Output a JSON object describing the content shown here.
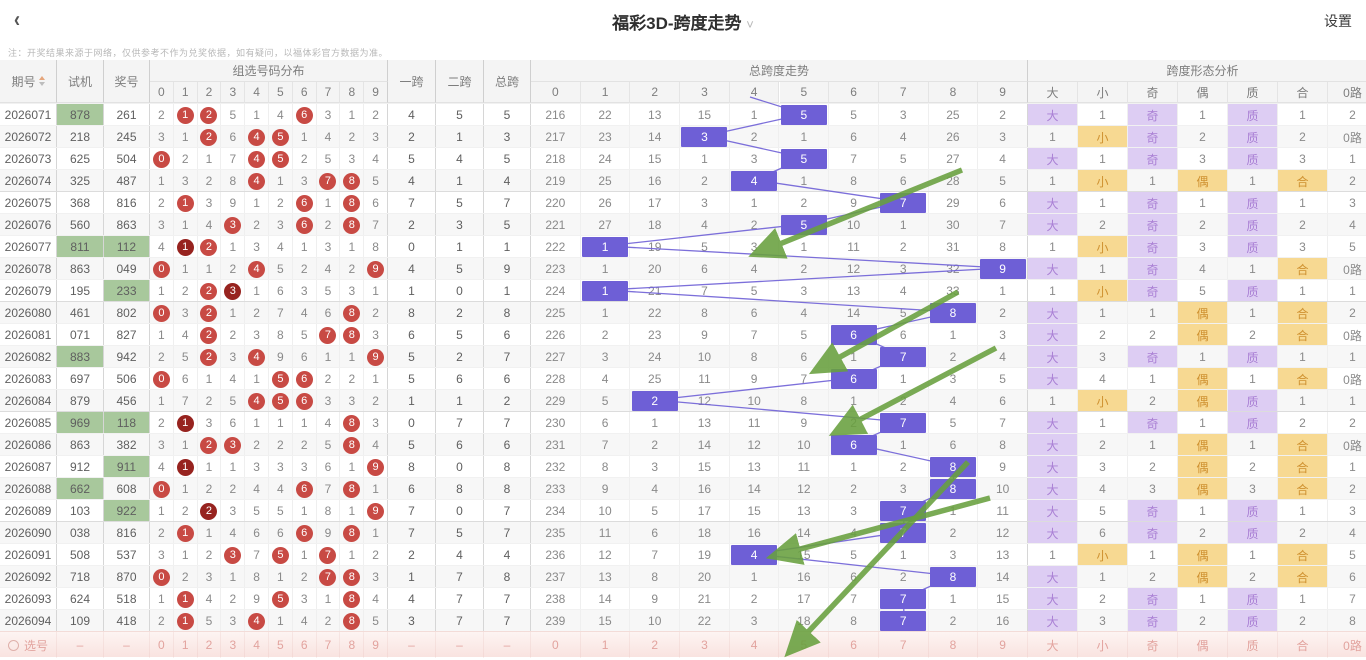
{
  "topbar": {
    "back_icon": "‹",
    "title": "福彩3D-跨度走势",
    "dropdown_icon": "⌄",
    "settings_label": "设置"
  },
  "note": "注：开奖结果来源于网络，仅供参考不作为兑奖依据，如有疑问，以福体彩官方数据为准。",
  "headers": {
    "issue": "期号",
    "test": "试机",
    "prize": "奖号",
    "dist_title": "组选号码分布",
    "digits": [
      "0",
      "1",
      "2",
      "3",
      "4",
      "5",
      "6",
      "7",
      "8",
      "9"
    ],
    "span1": "一跨",
    "span2": "二跨",
    "span_total": "总跨",
    "trend_title": "总跨度走势",
    "trend_digits": [
      "0",
      "1",
      "2",
      "3",
      "4",
      "5",
      "6",
      "7",
      "8",
      "9"
    ],
    "analysis_title": "跨度形态分析",
    "analysis_cols": [
      "大",
      "小",
      "奇",
      "偶",
      "质",
      "合",
      "0路"
    ]
  },
  "rows": [
    {
      "issue": "2026071",
      "test": "878",
      "test_hl": true,
      "prize": "261",
      "prize_hl": false,
      "omit": [
        2,
        1,
        2,
        5,
        1,
        4,
        6,
        3,
        1,
        2
      ],
      "circ": [
        0,
        1,
        1,
        0,
        0,
        0,
        1,
        0,
        0,
        0
      ],
      "k1": "4",
      "k2": "5",
      "kt": "5",
      "trend": [
        216,
        22,
        13,
        15,
        1,
        5,
        5,
        3,
        25,
        2
      ],
      "span": 5,
      "shape": [
        "大",
        "1",
        "奇",
        "1",
        "质",
        "1",
        "2"
      ]
    },
    {
      "issue": "2026072",
      "test": "218",
      "test_hl": false,
      "prize": "245",
      "prize_hl": false,
      "omit": [
        3,
        1,
        2,
        6,
        4,
        5,
        1,
        4,
        2,
        3
      ],
      "circ": [
        0,
        0,
        1,
        0,
        1,
        1,
        0,
        0,
        0,
        0
      ],
      "k1": "2",
      "k2": "1",
      "kt": "3",
      "trend": [
        217,
        23,
        14,
        3,
        2,
        1,
        6,
        4,
        26,
        3
      ],
      "span": 3,
      "shape": [
        "1",
        "小",
        "奇",
        "2",
        "质",
        "2",
        "0路"
      ]
    },
    {
      "issue": "2026073",
      "test": "625",
      "test_hl": false,
      "prize": "504",
      "prize_hl": false,
      "omit": [
        0,
        2,
        1,
        7,
        4,
        5,
        2,
        5,
        3,
        4
      ],
      "circ": [
        1,
        0,
        0,
        0,
        1,
        1,
        0,
        0,
        0,
        0
      ],
      "k1": "5",
      "k2": "4",
      "kt": "5",
      "trend": [
        218,
        24,
        15,
        1,
        3,
        5,
        7,
        5,
        27,
        4
      ],
      "span": 5,
      "shape": [
        "大",
        "1",
        "奇",
        "3",
        "质",
        "3",
        "1"
      ]
    },
    {
      "issue": "2026074",
      "test": "325",
      "test_hl": false,
      "prize": "487",
      "prize_hl": false,
      "omit": [
        1,
        3,
        2,
        8,
        4,
        1,
        3,
        7,
        8,
        5
      ],
      "circ": [
        0,
        0,
        0,
        0,
        1,
        0,
        0,
        1,
        1,
        0
      ],
      "k1": "4",
      "k2": "1",
      "kt": "4",
      "trend": [
        219,
        25,
        16,
        2,
        4,
        1,
        8,
        6,
        28,
        5
      ],
      "span": 4,
      "shape": [
        "1",
        "小",
        "1",
        "偶",
        "1",
        "合",
        "2"
      ]
    },
    {
      "issue": "2026075",
      "test": "368",
      "test_hl": false,
      "prize": "816",
      "prize_hl": false,
      "omit": [
        2,
        1,
        3,
        9,
        1,
        2,
        6,
        1,
        8,
        6
      ],
      "circ": [
        0,
        1,
        0,
        0,
        0,
        0,
        1,
        0,
        1,
        0
      ],
      "k1": "7",
      "k2": "5",
      "kt": "7",
      "trend": [
        220,
        26,
        17,
        3,
        1,
        2,
        9,
        7,
        29,
        6
      ],
      "span": 7,
      "shape": [
        "大",
        "1",
        "奇",
        "1",
        "质",
        "1",
        "3"
      ]
    },
    {
      "issue": "2026076",
      "test": "560",
      "test_hl": false,
      "prize": "863",
      "prize_hl": false,
      "omit": [
        3,
        1,
        4,
        3,
        2,
        3,
        6,
        2,
        8,
        7
      ],
      "circ": [
        0,
        0,
        0,
        1,
        0,
        0,
        1,
        0,
        1,
        0
      ],
      "k1": "2",
      "k2": "3",
      "kt": "5",
      "trend": [
        221,
        27,
        18,
        4,
        2,
        5,
        10,
        1,
        30,
        7
      ],
      "span": 5,
      "shape": [
        "大",
        "2",
        "奇",
        "2",
        "质",
        "2",
        "4"
      ]
    },
    {
      "issue": "2026077",
      "test": "811",
      "test_hl": true,
      "prize": "112",
      "prize_hl": true,
      "omit": [
        4,
        1,
        2,
        1,
        3,
        4,
        1,
        3,
        1,
        8
      ],
      "circ": [
        0,
        2,
        1,
        0,
        0,
        0,
        0,
        0,
        0,
        0
      ],
      "k1": "0",
      "k2": "1",
      "kt": "1",
      "trend": [
        222,
        1,
        19,
        5,
        3,
        1,
        11,
        2,
        31,
        8
      ],
      "span": 1,
      "shape": [
        "1",
        "小",
        "奇",
        "3",
        "质",
        "3",
        "5"
      ]
    },
    {
      "issue": "2026078",
      "test": "863",
      "test_hl": false,
      "prize": "049",
      "prize_hl": false,
      "omit": [
        0,
        1,
        1,
        2,
        4,
        5,
        2,
        4,
        2,
        9
      ],
      "circ": [
        1,
        0,
        0,
        0,
        1,
        0,
        0,
        0,
        0,
        1
      ],
      "k1": "4",
      "k2": "5",
      "kt": "9",
      "trend": [
        223,
        1,
        20,
        6,
        4,
        2,
        12,
        3,
        32,
        9
      ],
      "span": 9,
      "shape": [
        "大",
        "1",
        "奇",
        "4",
        "1",
        "合",
        "0路"
      ]
    },
    {
      "issue": "2026079",
      "test": "195",
      "test_hl": false,
      "prize": "233",
      "prize_hl": true,
      "omit": [
        1,
        2,
        2,
        3,
        1,
        6,
        3,
        5,
        3,
        1
      ],
      "circ": [
        0,
        0,
        1,
        2,
        0,
        0,
        0,
        0,
        0,
        0
      ],
      "k1": "1",
      "k2": "0",
      "kt": "1",
      "trend": [
        224,
        1,
        21,
        7,
        5,
        3,
        13,
        4,
        33,
        1
      ],
      "span": 1,
      "shape": [
        "1",
        "小",
        "奇",
        "5",
        "质",
        "1",
        "1"
      ]
    },
    {
      "issue": "2026080",
      "test": "461",
      "test_hl": false,
      "prize": "802",
      "prize_hl": false,
      "omit": [
        0,
        3,
        2,
        1,
        2,
        7,
        4,
        6,
        8,
        2
      ],
      "circ": [
        1,
        0,
        1,
        0,
        0,
        0,
        0,
        0,
        1,
        0
      ],
      "k1": "8",
      "k2": "2",
      "kt": "8",
      "trend": [
        225,
        1,
        22,
        8,
        6,
        4,
        14,
        5,
        8,
        2
      ],
      "span": 8,
      "shape": [
        "大",
        "1",
        "1",
        "偶",
        "1",
        "合",
        "2"
      ]
    },
    {
      "issue": "2026081",
      "test": "071",
      "test_hl": false,
      "prize": "827",
      "prize_hl": false,
      "omit": [
        1,
        4,
        2,
        2,
        3,
        8,
        5,
        7,
        8,
        3
      ],
      "circ": [
        0,
        0,
        1,
        0,
        0,
        0,
        0,
        1,
        1,
        0
      ],
      "k1": "6",
      "k2": "5",
      "kt": "6",
      "trend": [
        226,
        2,
        23,
        9,
        7,
        5,
        6,
        6,
        1,
        3
      ],
      "span": 6,
      "shape": [
        "大",
        "2",
        "2",
        "偶",
        "2",
        "合",
        "0路"
      ]
    },
    {
      "issue": "2026082",
      "test": "883",
      "test_hl": true,
      "prize": "942",
      "prize_hl": false,
      "omit": [
        2,
        5,
        2,
        3,
        4,
        9,
        6,
        1,
        1,
        9
      ],
      "circ": [
        0,
        0,
        1,
        0,
        1,
        0,
        0,
        0,
        0,
        1
      ],
      "k1": "5",
      "k2": "2",
      "kt": "7",
      "trend": [
        227,
        3,
        24,
        10,
        8,
        6,
        1,
        7,
        2,
        4
      ],
      "span": 7,
      "shape": [
        "大",
        "3",
        "奇",
        "1",
        "质",
        "1",
        "1"
      ]
    },
    {
      "issue": "2026083",
      "test": "697",
      "test_hl": false,
      "prize": "506",
      "prize_hl": false,
      "omit": [
        0,
        6,
        1,
        4,
        1,
        5,
        6,
        2,
        2,
        1
      ],
      "circ": [
        1,
        0,
        0,
        0,
        0,
        1,
        1,
        0,
        0,
        0
      ],
      "k1": "5",
      "k2": "6",
      "kt": "6",
      "trend": [
        228,
        4,
        25,
        11,
        9,
        7,
        6,
        1,
        3,
        5
      ],
      "span": 6,
      "shape": [
        "大",
        "4",
        "1",
        "偶",
        "1",
        "合",
        "0路"
      ]
    },
    {
      "issue": "2026084",
      "test": "879",
      "test_hl": false,
      "prize": "456",
      "prize_hl": false,
      "omit": [
        1,
        7,
        2,
        5,
        4,
        5,
        6,
        3,
        3,
        2
      ],
      "circ": [
        0,
        0,
        0,
        0,
        1,
        1,
        1,
        0,
        0,
        0
      ],
      "k1": "1",
      "k2": "1",
      "kt": "2",
      "trend": [
        229,
        5,
        2,
        12,
        10,
        8,
        1,
        2,
        4,
        6
      ],
      "span": 2,
      "shape": [
        "1",
        "小",
        "2",
        "偶",
        "质",
        "1",
        "1"
      ]
    },
    {
      "issue": "2026085",
      "test": "969",
      "test_hl": true,
      "prize": "118",
      "prize_hl": true,
      "omit": [
        2,
        1,
        3,
        6,
        1,
        1,
        1,
        4,
        8,
        3
      ],
      "circ": [
        0,
        2,
        0,
        0,
        0,
        0,
        0,
        0,
        1,
        0
      ],
      "k1": "0",
      "k2": "7",
      "kt": "7",
      "trend": [
        230,
        6,
        1,
        13,
        11,
        9,
        2,
        7,
        5,
        7
      ],
      "span": 7,
      "shape": [
        "大",
        "1",
        "奇",
        "1",
        "质",
        "2",
        "2"
      ]
    },
    {
      "issue": "2026086",
      "test": "863",
      "test_hl": false,
      "prize": "382",
      "prize_hl": false,
      "omit": [
        3,
        1,
        2,
        3,
        2,
        2,
        2,
        5,
        8,
        4
      ],
      "circ": [
        0,
        0,
        1,
        1,
        0,
        0,
        0,
        0,
        1,
        0
      ],
      "k1": "5",
      "k2": "6",
      "kt": "6",
      "trend": [
        231,
        7,
        2,
        14,
        12,
        10,
        6,
        1,
        6,
        8
      ],
      "span": 6,
      "shape": [
        "大",
        "2",
        "1",
        "偶",
        "1",
        "合",
        "0路"
      ]
    },
    {
      "issue": "2026087",
      "test": "912",
      "test_hl": false,
      "prize": "911",
      "prize_hl": true,
      "omit": [
        4,
        1,
        1,
        1,
        3,
        3,
        3,
        6,
        1,
        9
      ],
      "circ": [
        0,
        2,
        0,
        0,
        0,
        0,
        0,
        0,
        0,
        1
      ],
      "k1": "8",
      "k2": "0",
      "kt": "8",
      "trend": [
        232,
        8,
        3,
        15,
        13,
        11,
        1,
        2,
        8,
        9
      ],
      "span": 8,
      "shape": [
        "大",
        "3",
        "2",
        "偶",
        "2",
        "合",
        "1"
      ]
    },
    {
      "issue": "2026088",
      "test": "662",
      "test_hl": true,
      "prize": "608",
      "prize_hl": false,
      "omit": [
        0,
        1,
        2,
        2,
        4,
        4,
        6,
        7,
        8,
        1
      ],
      "circ": [
        1,
        0,
        0,
        0,
        0,
        0,
        1,
        0,
        1,
        0
      ],
      "k1": "6",
      "k2": "8",
      "kt": "8",
      "trend": [
        233,
        9,
        4,
        16,
        14,
        12,
        2,
        3,
        8,
        10
      ],
      "span": 8,
      "shape": [
        "大",
        "4",
        "3",
        "偶",
        "3",
        "合",
        "2"
      ]
    },
    {
      "issue": "2026089",
      "test": "103",
      "test_hl": false,
      "prize": "922",
      "prize_hl": true,
      "omit": [
        1,
        2,
        2,
        3,
        5,
        5,
        1,
        8,
        1,
        9
      ],
      "circ": [
        0,
        0,
        2,
        0,
        0,
        0,
        0,
        0,
        0,
        1
      ],
      "k1": "7",
      "k2": "0",
      "kt": "7",
      "trend": [
        234,
        10,
        5,
        17,
        15,
        13,
        3,
        7,
        1,
        11
      ],
      "span": 7,
      "shape": [
        "大",
        "5",
        "奇",
        "1",
        "质",
        "1",
        "3"
      ]
    },
    {
      "issue": "2026090",
      "test": "038",
      "test_hl": false,
      "prize": "816",
      "prize_hl": false,
      "omit": [
        2,
        1,
        1,
        4,
        6,
        6,
        6,
        9,
        8,
        1
      ],
      "circ": [
        0,
        1,
        0,
        0,
        0,
        0,
        1,
        0,
        1,
        0
      ],
      "k1": "7",
      "k2": "5",
      "kt": "7",
      "trend": [
        235,
        11,
        6,
        18,
        16,
        14,
        4,
        7,
        2,
        12
      ],
      "span": 7,
      "shape": [
        "大",
        "6",
        "奇",
        "2",
        "质",
        "2",
        "4"
      ]
    },
    {
      "issue": "2026091",
      "test": "508",
      "test_hl": false,
      "prize": "537",
      "prize_hl": false,
      "omit": [
        3,
        1,
        2,
        3,
        7,
        5,
        1,
        7,
        1,
        2
      ],
      "circ": [
        0,
        0,
        0,
        1,
        0,
        1,
        0,
        1,
        0,
        0
      ],
      "k1": "2",
      "k2": "4",
      "kt": "4",
      "trend": [
        236,
        12,
        7,
        19,
        4,
        15,
        5,
        1,
        3,
        13
      ],
      "span": 4,
      "shape": [
        "1",
        "小",
        "1",
        "偶",
        "1",
        "合",
        "5"
      ]
    },
    {
      "issue": "2026092",
      "test": "718",
      "test_hl": false,
      "prize": "870",
      "prize_hl": false,
      "omit": [
        0,
        2,
        3,
        1,
        8,
        1,
        2,
        7,
        8,
        3
      ],
      "circ": [
        1,
        0,
        0,
        0,
        0,
        0,
        0,
        1,
        1,
        0
      ],
      "k1": "1",
      "k2": "7",
      "kt": "8",
      "trend": [
        237,
        13,
        8,
        20,
        1,
        16,
        6,
        2,
        8,
        14
      ],
      "span": 8,
      "shape": [
        "大",
        "1",
        "2",
        "偶",
        "2",
        "合",
        "6"
      ]
    },
    {
      "issue": "2026093",
      "test": "624",
      "test_hl": false,
      "prize": "518",
      "prize_hl": false,
      "omit": [
        1,
        1,
        4,
        2,
        9,
        5,
        3,
        1,
        8,
        4
      ],
      "circ": [
        0,
        1,
        0,
        0,
        0,
        1,
        0,
        0,
        1,
        0
      ],
      "k1": "4",
      "k2": "7",
      "kt": "7",
      "trend": [
        238,
        14,
        9,
        21,
        2,
        17,
        7,
        7,
        1,
        15
      ],
      "span": 7,
      "shape": [
        "大",
        "2",
        "奇",
        "1",
        "质",
        "1",
        "7"
      ]
    },
    {
      "issue": "2026094",
      "test": "109",
      "test_hl": false,
      "prize": "418",
      "prize_hl": false,
      "omit": [
        2,
        1,
        5,
        3,
        4,
        1,
        4,
        2,
        8,
        5
      ],
      "circ": [
        0,
        1,
        0,
        0,
        1,
        0,
        0,
        0,
        1,
        0
      ],
      "k1": "3",
      "k2": "7",
      "kt": "7",
      "trend": [
        239,
        15,
        10,
        22,
        3,
        18,
        8,
        7,
        2,
        16
      ],
      "span": 7,
      "shape": [
        "大",
        "3",
        "奇",
        "2",
        "质",
        "2",
        "8"
      ]
    }
  ],
  "footer": {
    "select_label": "选号",
    "dash": "–",
    "digits": [
      "0",
      "1",
      "2",
      "3",
      "4",
      "5",
      "6",
      "7",
      "8",
      "9"
    ],
    "trend_digits": [
      "0",
      "1",
      "2",
      "3",
      "4",
      "5",
      "6",
      "7",
      "8",
      "9"
    ],
    "shape_labels": [
      "大",
      "小",
      "奇",
      "偶",
      "质",
      "合",
      "0路"
    ]
  },
  "annotations": {
    "trend_stub": [
      750,
      97
    ],
    "green_arrows": [
      [
        962,
        170,
        760,
        252
      ],
      [
        958,
        292,
        820,
        368
      ],
      [
        996,
        348,
        840,
        430
      ],
      [
        990,
        498,
        778,
        555
      ],
      [
        968,
        462,
        793,
        648
      ]
    ]
  },
  "colors": {
    "span_box": "#6e5fd6",
    "trend_line": "#6e5fd6",
    "circle_red": "#c84a44",
    "circle_dark_red": "#97231f",
    "green_cell": "#a8c89c",
    "arrow_green": "#68a03e",
    "shape_purple_bg": "#ddcdf3",
    "shape_purple_text": "#a97fd4",
    "shape_amber_bg": "#f7d992",
    "shape_amber_text": "#cf9130",
    "footer_pink_text": "#e2a39e"
  }
}
